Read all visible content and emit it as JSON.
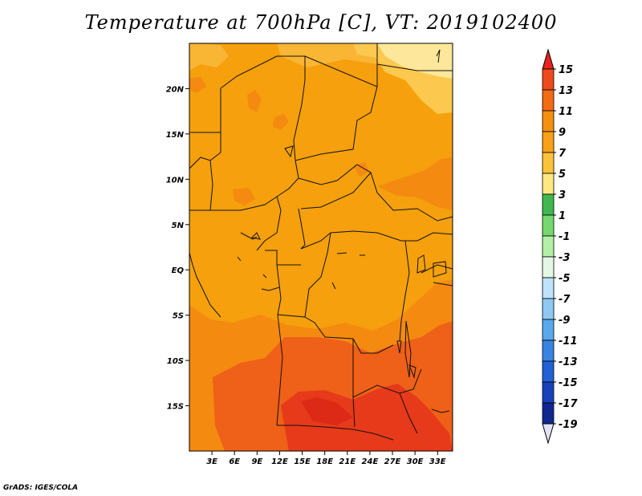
{
  "title": "Temperature at 700hPa [C], VT: 2019102400",
  "credit": "GrADS: IGES/COLA",
  "map": {
    "region": "Central Africa",
    "lon_range": [
      0,
      35
    ],
    "lat_range": [
      -20,
      25
    ],
    "x_ticks": [
      "3E",
      "6E",
      "9E",
      "12E",
      "15E",
      "18E",
      "21E",
      "24E",
      "27E",
      "30E",
      "33E"
    ],
    "x_tick_values": [
      3,
      6,
      9,
      12,
      15,
      18,
      21,
      24,
      27,
      30,
      33
    ],
    "y_ticks": [
      "20N",
      "15N",
      "10N",
      "5N",
      "EQ",
      "5S",
      "10S",
      "15S"
    ],
    "y_tick_values": [
      20,
      15,
      10,
      5,
      0,
      -5,
      -10,
      -15
    ]
  },
  "colorbar": {
    "levels": [
      "15",
      "13",
      "11",
      "9",
      "7",
      "5",
      "3",
      "1",
      "-1",
      "-3",
      "-5",
      "-7",
      "-9",
      "-11",
      "-13",
      "-15",
      "-17",
      "-19"
    ],
    "colors": [
      "#e8221d",
      "#ef4a1a",
      "#f36b12",
      "#f5900f",
      "#f8a118",
      "#fcc238",
      "#fde781",
      "#3fb84d",
      "#76d86e",
      "#b4efa6",
      "#e4f7e7",
      "#bde2fa",
      "#8fc8f2",
      "#5aa8ec",
      "#3884e2",
      "#2260d6",
      "#1842b9",
      "#10278f",
      "#0b0b55",
      "#e3e1f8"
    ]
  }
}
